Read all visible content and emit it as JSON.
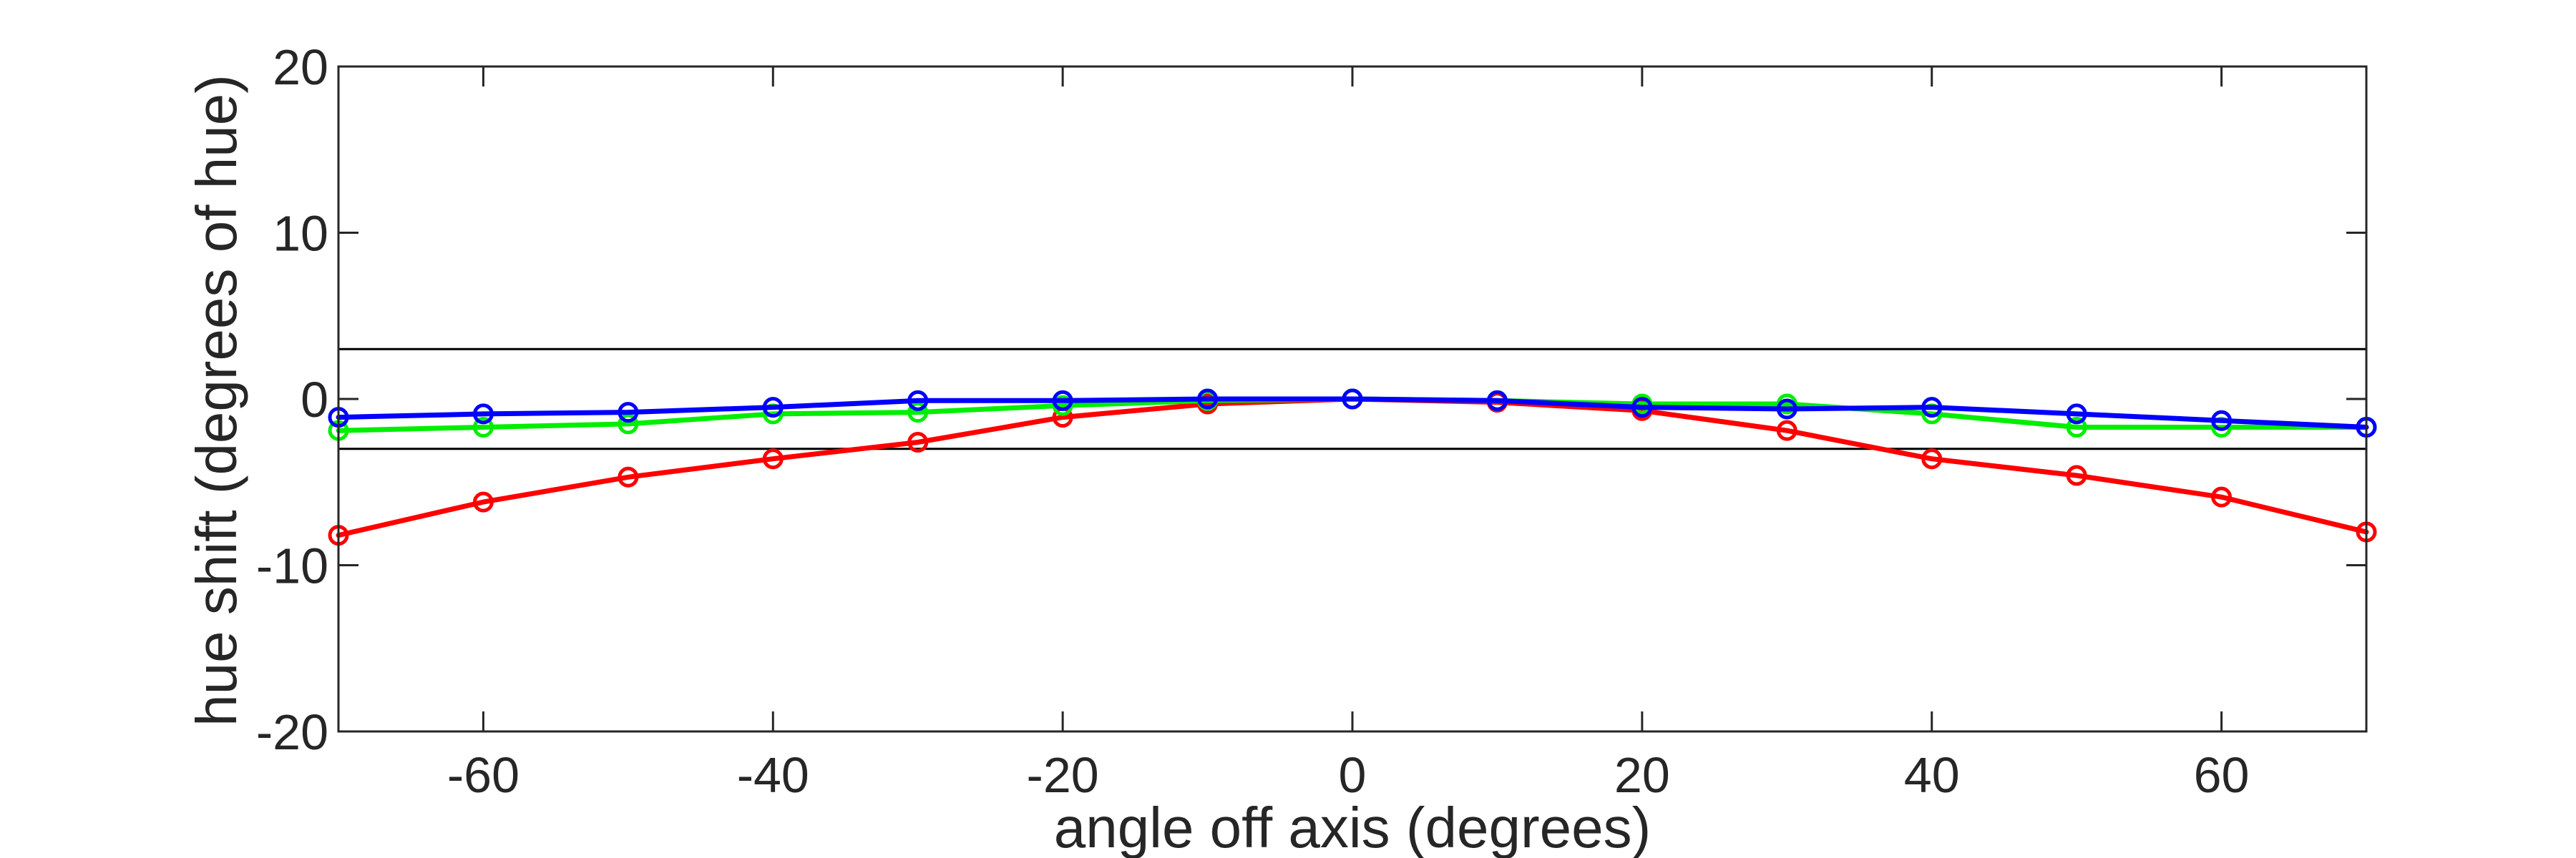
{
  "chart_data": {
    "type": "line",
    "title": "",
    "xlabel": "angle off axis (degrees)",
    "ylabel": "hue shift (degrees of hue)",
    "xlim": [
      -70,
      70
    ],
    "ylim": [
      -20,
      20
    ],
    "xticks": [
      -60,
      -40,
      -20,
      0,
      20,
      40,
      60
    ],
    "yticks": [
      -20,
      -10,
      0,
      10,
      20
    ],
    "x": [
      -70,
      -60,
      -50,
      -40,
      -30,
      -20,
      -10,
      0,
      10,
      20,
      30,
      40,
      50,
      60,
      70
    ],
    "reference_lines": [
      3,
      -3
    ],
    "grid": false,
    "series": [
      {
        "color": "#ff0000",
        "values": [
          -8.2,
          -6.2,
          -4.7,
          -3.6,
          -2.6,
          -1.1,
          -0.3,
          0,
          -0.2,
          -0.7,
          -1.9,
          -3.6,
          -4.6,
          -5.9,
          -8.0
        ]
      },
      {
        "color": "#00ee00",
        "values": [
          -1.9,
          -1.7,
          -1.5,
          -0.9,
          -0.8,
          -0.4,
          -0.1,
          0,
          -0.1,
          -0.3,
          -0.3,
          -0.9,
          -1.7,
          -1.7,
          -1.7
        ]
      },
      {
        "color": "#0000ff",
        "values": [
          -1.1,
          -0.9,
          -0.8,
          -0.5,
          -0.1,
          -0.1,
          0,
          0,
          -0.1,
          -0.5,
          -0.6,
          -0.5,
          -0.9,
          -1.3,
          -1.7
        ]
      }
    ]
  }
}
